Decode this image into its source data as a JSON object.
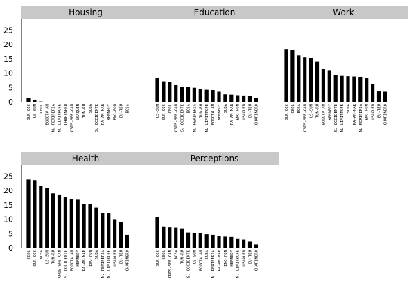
{
  "chart_data": [
    {
      "type": "bar",
      "title": "Housing",
      "categories": [
        "SUR OCC",
        "US-SUM",
        "CBOL",
        "BOGOTA AM",
        "N. PERIFERIA",
        "N. LIMITROFE",
        "CHAPINERO",
        "CRIS-SFE-CAN",
        "USAQUEN",
        "TUN-RU",
        "SUBA",
        "S. OCCIDENTE",
        "PA-AN-MAR",
        "KENNEDY",
        "ENG-FON",
        "BU-TEU",
        "BOSA"
      ],
      "values": [
        1.3,
        0.6,
        0.1,
        0,
        0,
        0,
        0,
        0,
        0,
        0,
        0,
        0,
        0,
        0,
        0,
        0,
        0
      ],
      "ylim": [
        0,
        28
      ],
      "yticks": [
        "0",
        "5",
        "10",
        "15",
        "20",
        "25"
      ]
    },
    {
      "type": "bar",
      "title": "Education",
      "categories": [
        "US-SUM",
        "SUR OCC",
        "CBOL",
        "CRIS-SFE-CAN",
        "S. OCCIDENTE",
        "BOSA",
        "N. PERIFERIA",
        "TUN-RU",
        "N. LIMITROFE",
        "BOGOTA AM",
        "KENNEDY",
        "SUBA",
        "PA-AN-MAR",
        "ENG-FON",
        "USAQUEN",
        "BU-TEU",
        "CHAPINERO"
      ],
      "values": [
        8.2,
        7.1,
        6.8,
        5.8,
        5.3,
        5.1,
        4.9,
        4.5,
        4.2,
        4.1,
        3.5,
        2.6,
        2.5,
        2.3,
        2.2,
        2.0,
        1.3
      ],
      "ylim": [
        0,
        28
      ]
    },
    {
      "type": "bar",
      "title": "Work",
      "categories": [
        "SUR OCC",
        "CBOL",
        "BOSA",
        "CRIS-SFE-CAN",
        "US-SUM",
        "TUN-RU",
        "BOGOTA AM",
        "KENNEDY",
        "S. OCCIDENTE",
        "N. LIMITROFE",
        "SUBA",
        "PA-AN-MAR",
        "N. PERIFERIA",
        "ENG-FON",
        "USAQUEN",
        "BU-TEU",
        "CHAPINERO"
      ],
      "values": [
        18.3,
        18.1,
        16.1,
        15.4,
        15.2,
        14.1,
        11.5,
        11.0,
        9.4,
        9.0,
        8.9,
        8.8,
        8.7,
        8.4,
        6.2,
        3.6,
        3.5
      ],
      "ylim": [
        0,
        28
      ]
    },
    {
      "type": "bar",
      "title": "Health",
      "categories": [
        "CBOL",
        "SUR OCC",
        "BOSA",
        "US-SUM",
        "TUN-RU",
        "CRIS-SFE-CAN",
        "S. OCCIDENTE",
        "BOGOTA AM",
        "KENNEDY",
        "PA-AN-MAR",
        "ENG-FON",
        "SUBA",
        "N. PERIFERIA",
        "N. LIMITROFE",
        "USAQUEN",
        "BU-TEU",
        "CHAPINERO"
      ],
      "values": [
        23.8,
        23.6,
        21.6,
        20.8,
        19.0,
        18.6,
        17.8,
        17.0,
        16.8,
        15.4,
        15.2,
        14.1,
        12.3,
        12.1,
        9.8,
        9.0,
        4.6
      ],
      "ylim": [
        0,
        28
      ],
      "yticks": [
        "0",
        "5",
        "10",
        "15",
        "20",
        "25"
      ]
    },
    {
      "type": "bar",
      "title": "Perceptions",
      "categories": [
        "SUR OCC",
        "CBOL",
        "CRIS-SFE-CAN",
        "BOSA",
        "TUN-RU",
        "S. OCCIDENTE",
        "US-SUM",
        "BOGOTA AM",
        "SUBA",
        "N. PERIFERIA",
        "PA-AN-MAR",
        "ENG-FON",
        "KENNEDY",
        "N. LIMITROFE",
        "USAQUEN",
        "BU-TEU",
        "CHAPINERO"
      ],
      "values": [
        10.7,
        7.3,
        7.2,
        7.1,
        6.6,
        5.4,
        5.2,
        5.1,
        4.8,
        4.6,
        4.1,
        4.0,
        3.9,
        3.2,
        3.0,
        2.3,
        1.1
      ],
      "ylim": [
        0,
        28
      ]
    }
  ]
}
